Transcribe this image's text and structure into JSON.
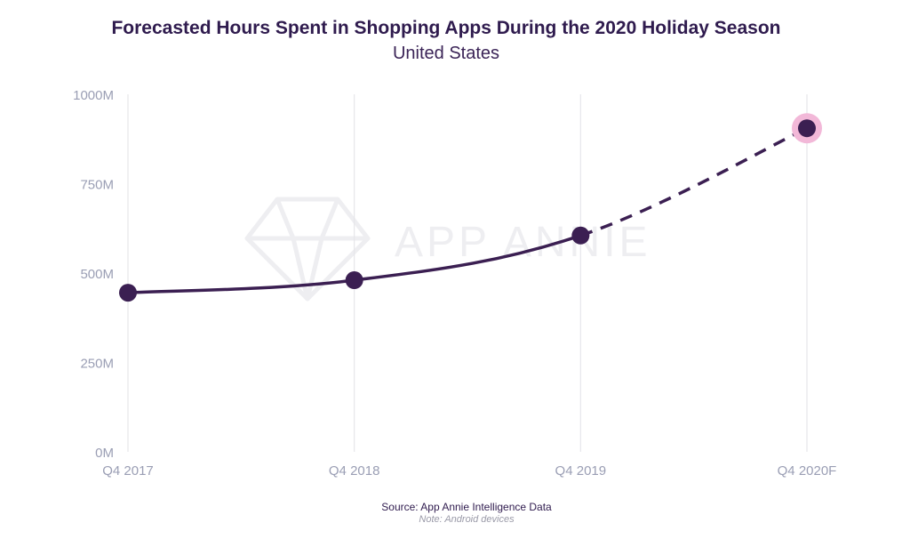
{
  "chart_data": {
    "type": "line",
    "title": "Forecasted Hours Spent in Shopping Apps During the 2020 Holiday Season",
    "subtitle": "United States",
    "categories": [
      "Q4 2017",
      "Q4 2018",
      "Q4 2019",
      "Q4 2020F"
    ],
    "values": [
      445,
      480,
      605,
      905
    ],
    "forecast_from_index": 2,
    "highlight_index": 3,
    "yticks": [
      0,
      250,
      500,
      750,
      1000
    ],
    "ytick_labels": [
      "0M",
      "250M",
      "500M",
      "750M",
      "1000M"
    ],
    "ylim": [
      0,
      1000
    ],
    "grid": "vertical",
    "legend": "none",
    "source": "Source: App Annie Intelligence Data",
    "note": "Note: Android devices",
    "watermark": "APP ANNIE",
    "colors": {
      "line": "#3b1f52",
      "point": "#3b1f52",
      "highlight_halo": "#f2b8d8",
      "grid": "#e6e6ea",
      "tick": "#9a9eb4",
      "title": "#2f1b4e"
    }
  }
}
